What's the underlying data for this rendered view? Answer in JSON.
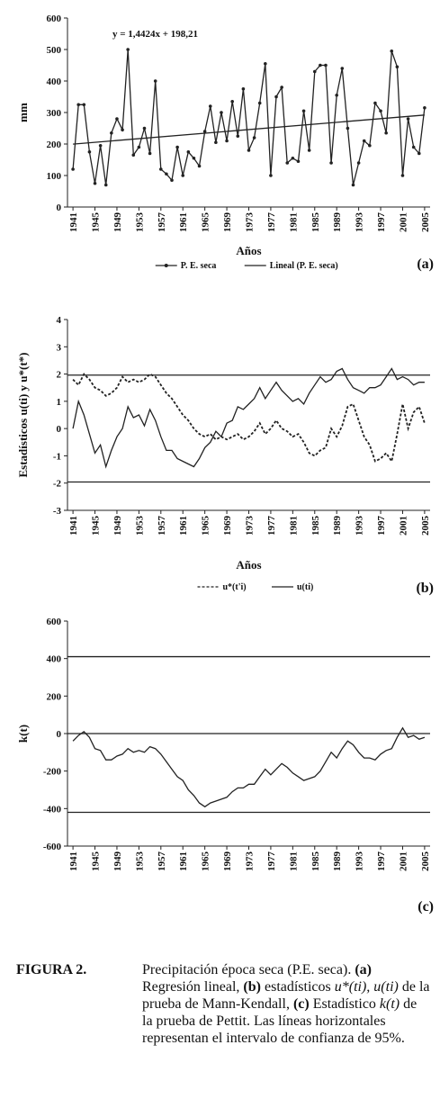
{
  "chart_data": [
    {
      "type": "line",
      "panel": "(a)",
      "y_label": "mm",
      "x_label": "Años",
      "annotation": "y = 1,4424x + 198,21",
      "xlim": [
        1940,
        2006
      ],
      "xticks": [
        1941,
        1945,
        1949,
        1953,
        1957,
        1961,
        1965,
        1969,
        1973,
        1977,
        1981,
        1985,
        1989,
        1993,
        1997,
        2001,
        2005
      ],
      "ylim": [
        0,
        600
      ],
      "yticks": [
        0,
        100,
        200,
        300,
        400,
        500,
        600
      ],
      "x": [
        1941,
        1942,
        1943,
        1944,
        1945,
        1946,
        1947,
        1948,
        1949,
        1950,
        1951,
        1952,
        1953,
        1954,
        1955,
        1956,
        1957,
        1958,
        1959,
        1960,
        1961,
        1962,
        1963,
        1964,
        1965,
        1966,
        1967,
        1968,
        1969,
        1970,
        1971,
        1972,
        1973,
        1974,
        1975,
        1976,
        1977,
        1978,
        1979,
        1980,
        1981,
        1982,
        1983,
        1984,
        1985,
        1986,
        1987,
        1988,
        1989,
        1990,
        1991,
        1992,
        1993,
        1994,
        1995,
        1996,
        1997,
        1998,
        1999,
        2000,
        2001,
        2002,
        2003,
        2004,
        2005
      ],
      "series": [
        {
          "name": "P. E. seca",
          "color": "#222",
          "marker": true,
          "dash": false,
          "values": [
            120,
            325,
            325,
            175,
            75,
            195,
            70,
            235,
            280,
            245,
            500,
            165,
            190,
            250,
            170,
            400,
            120,
            105,
            85,
            190,
            100,
            175,
            155,
            130,
            240,
            320,
            205,
            300,
            210,
            335,
            225,
            375,
            180,
            220,
            330,
            455,
            100,
            350,
            380,
            140,
            155,
            145,
            305,
            180,
            430,
            450,
            450,
            140,
            355,
            440,
            250,
            70,
            140,
            210,
            195,
            330,
            305,
            235,
            495,
            445,
            100,
            280,
            190,
            170,
            315
          ]
        },
        {
          "name": "Lineal (P. E. seca)",
          "color": "#222",
          "marker": false,
          "dash": false,
          "x": [
            1941,
            2005
          ],
          "values": [
            199.7,
            291.9
          ]
        }
      ]
    },
    {
      "type": "line",
      "panel": "(b)",
      "y_label": "Estadísticos u(ti) y u*(t*)",
      "x_label": "Años",
      "xlim": [
        1940,
        2006
      ],
      "xticks": [
        1941,
        1945,
        1949,
        1953,
        1957,
        1961,
        1965,
        1969,
        1973,
        1977,
        1981,
        1985,
        1989,
        1993,
        1997,
        2001,
        2005
      ],
      "ylim": [
        -3,
        4
      ],
      "yticks": [
        -3,
        -2,
        -1,
        0,
        1,
        2,
        3,
        4
      ],
      "reference_lines": [
        1.96,
        -1.96
      ],
      "x": [
        1941,
        1942,
        1943,
        1944,
        1945,
        1946,
        1947,
        1948,
        1949,
        1950,
        1951,
        1952,
        1953,
        1954,
        1955,
        1956,
        1957,
        1958,
        1959,
        1960,
        1961,
        1962,
        1963,
        1964,
        1965,
        1966,
        1967,
        1968,
        1969,
        1970,
        1971,
        1972,
        1973,
        1974,
        1975,
        1976,
        1977,
        1978,
        1979,
        1980,
        1981,
        1982,
        1983,
        1984,
        1985,
        1986,
        1987,
        1988,
        1989,
        1990,
        1991,
        1992,
        1993,
        1994,
        1995,
        1996,
        1997,
        1998,
        1999,
        2000,
        2001,
        2002,
        2003,
        2004,
        2005
      ],
      "series": [
        {
          "name": "u*(t'i)",
          "color": "#222",
          "marker": false,
          "dash": true,
          "values": [
            1.8,
            1.6,
            2.0,
            1.8,
            1.5,
            1.4,
            1.2,
            1.3,
            1.5,
            1.9,
            1.7,
            1.8,
            1.7,
            1.8,
            2.0,
            1.9,
            1.6,
            1.3,
            1.1,
            0.8,
            0.5,
            0.3,
            0.0,
            -0.2,
            -0.3,
            -0.2,
            -0.4,
            -0.3,
            -0.4,
            -0.3,
            -0.2,
            -0.4,
            -0.3,
            -0.1,
            0.2,
            -0.2,
            0.0,
            0.3,
            0.0,
            -0.1,
            -0.3,
            -0.2,
            -0.5,
            -0.9,
            -1.0,
            -0.8,
            -0.7,
            0.0,
            -0.3,
            0.1,
            0.8,
            0.9,
            0.3,
            -0.3,
            -0.6,
            -1.2,
            -1.1,
            -0.9,
            -1.2,
            -0.2,
            0.9,
            0.0,
            0.6,
            0.8,
            0.2
          ]
        },
        {
          "name": "u(ti)",
          "color": "#222",
          "marker": false,
          "dash": false,
          "values": [
            0.0,
            1.0,
            0.5,
            -0.2,
            -0.9,
            -0.6,
            -1.4,
            -0.8,
            -0.3,
            0.0,
            0.8,
            0.4,
            0.5,
            0.1,
            0.7,
            0.3,
            -0.3,
            -0.8,
            -0.8,
            -1.1,
            -1.2,
            -1.3,
            -1.4,
            -1.1,
            -0.7,
            -0.5,
            -0.1,
            -0.3,
            0.2,
            0.3,
            0.8,
            0.7,
            0.9,
            1.1,
            1.5,
            1.1,
            1.4,
            1.7,
            1.4,
            1.2,
            1.0,
            1.1,
            0.9,
            1.3,
            1.6,
            1.9,
            1.7,
            1.8,
            2.1,
            2.2,
            1.8,
            1.5,
            1.4,
            1.3,
            1.5,
            1.5,
            1.6,
            1.9,
            2.2,
            1.8,
            1.9,
            1.8,
            1.6,
            1.7,
            1.7
          ]
        }
      ]
    },
    {
      "type": "line",
      "panel": "(c)",
      "y_label": "k(t)",
      "xlim": [
        1940,
        2006
      ],
      "xticks": [
        1941,
        1945,
        1949,
        1953,
        1957,
        1961,
        1965,
        1969,
        1973,
        1977,
        1981,
        1985,
        1989,
        1993,
        1997,
        2001,
        2005
      ],
      "ylim": [
        -600,
        600
      ],
      "yticks": [
        -600,
        -400,
        -200,
        0,
        200,
        400,
        600
      ],
      "reference_lines": [
        410,
        0,
        -420
      ],
      "x": [
        1941,
        1942,
        1943,
        1944,
        1945,
        1946,
        1947,
        1948,
        1949,
        1950,
        1951,
        1952,
        1953,
        1954,
        1955,
        1956,
        1957,
        1958,
        1959,
        1960,
        1961,
        1962,
        1963,
        1964,
        1965,
        1966,
        1967,
        1968,
        1969,
        1970,
        1971,
        1972,
        1973,
        1974,
        1975,
        1976,
        1977,
        1978,
        1979,
        1980,
        1981,
        1982,
        1983,
        1984,
        1985,
        1986,
        1987,
        1988,
        1989,
        1990,
        1991,
        1992,
        1993,
        1994,
        1995,
        1996,
        1997,
        1998,
        1999,
        2000,
        2001,
        2002,
        2003,
        2004,
        2005
      ],
      "series": [
        {
          "color": "#222",
          "marker": false,
          "dash": false,
          "values": [
            -40,
            -10,
            10,
            -20,
            -80,
            -90,
            -140,
            -140,
            -120,
            -110,
            -80,
            -100,
            -90,
            -100,
            -70,
            -80,
            -110,
            -150,
            -190,
            -230,
            -250,
            -300,
            -330,
            -370,
            -390,
            -370,
            -360,
            -350,
            -340,
            -310,
            -290,
            -290,
            -270,
            -270,
            -230,
            -190,
            -220,
            -190,
            -160,
            -180,
            -210,
            -230,
            -250,
            -240,
            -230,
            -200,
            -150,
            -100,
            -130,
            -80,
            -40,
            -60,
            -100,
            -130,
            -130,
            -140,
            -110,
            -90,
            -80,
            -20,
            30,
            -20,
            -10,
            -30,
            -20
          ]
        }
      ]
    }
  ],
  "caption": {
    "label": "FIGURA 2.",
    "parts": [
      "Precipitación época seca (P.E. seca). ",
      "(a)",
      " Regresión lineal, ",
      "(b)",
      " estadísticos ",
      "u*(ti), u(ti)",
      " de la prueba de Mann-Kendall, ",
      "(c)",
      " Estadístico ",
      "k(t)",
      " de la prueba de Pettit. Las líneas horizontales representan el intervalo de confianza de 95%."
    ]
  }
}
